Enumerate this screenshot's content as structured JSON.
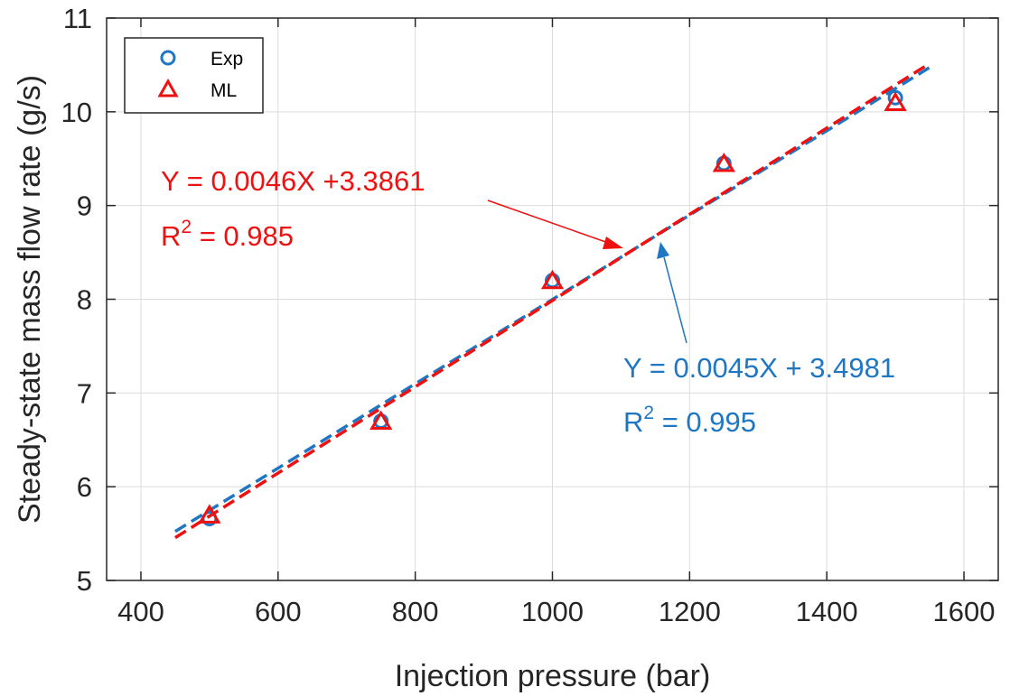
{
  "chart_data": {
    "type": "scatter",
    "xlabel": "Injection pressure (bar)",
    "ylabel": "Steady-state mass flow rate (g/s)",
    "xlim": [
      350,
      1650
    ],
    "ylim": [
      5,
      11
    ],
    "xticks": [
      400,
      600,
      800,
      1000,
      1200,
      1400,
      1600
    ],
    "yticks": [
      5,
      6,
      7,
      8,
      9,
      10,
      11
    ],
    "grid": true,
    "legend_position": "top-left",
    "colors": {
      "exp": "#1f77c4",
      "ml": "#ee1111"
    },
    "series": [
      {
        "name": "Exp",
        "marker": "circle",
        "x": [
          500,
          750,
          1000,
          1250,
          1500
        ],
        "y": [
          5.66,
          6.7,
          8.2,
          9.45,
          10.15
        ]
      },
      {
        "name": "ML",
        "marker": "triangle",
        "x": [
          500,
          750,
          1000,
          1250,
          1500
        ],
        "y": [
          5.7,
          6.7,
          8.2,
          9.45,
          10.1
        ]
      }
    ],
    "fits": [
      {
        "series": "Exp",
        "slope": 0.0045,
        "intercept": 3.4981,
        "x_range": [
          450,
          1550
        ],
        "equation": "Y = 0.0045X + 3.4981",
        "r2_prefix": "R",
        "r2_sup": "2",
        "r2_value": " = 0.995"
      },
      {
        "series": "ML",
        "slope": 0.0046,
        "intercept": 3.3861,
        "x_range": [
          450,
          1550
        ],
        "equation": "Y = 0.0046X +3.3861",
        "r2_prefix": "R",
        "r2_sup": "2",
        "r2_value": " = 0.985"
      }
    ]
  }
}
